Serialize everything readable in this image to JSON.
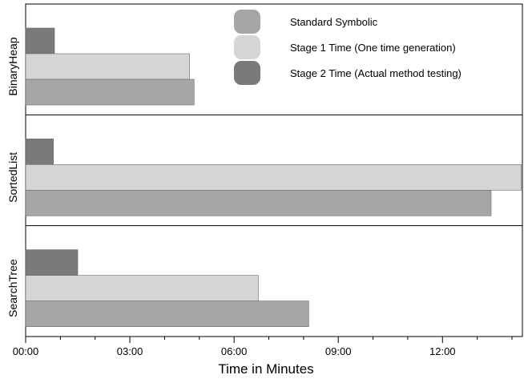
{
  "chart_data": {
    "type": "bar",
    "orientation": "horizontal",
    "title": "",
    "xlabel": "Time in Minutes",
    "ylabel": "",
    "xlim": [
      0,
      14.3
    ],
    "x_ticks": [
      0,
      3,
      6,
      9,
      12
    ],
    "x_tick_labels": [
      "00:00",
      "03:00",
      "06:00",
      "09:00",
      "12:00"
    ],
    "grid": false,
    "legend_position": "top-right",
    "categories": [
      "BinaryHeap",
      "SortedList",
      "SearchTree"
    ],
    "series": [
      {
        "name": "Stage 2 Time (Actual method testing)",
        "color": "#7a7a7a",
        "values": [
          0.83,
          0.8,
          1.5
        ]
      },
      {
        "name": "Stage 1 Time (One time generation)",
        "color": "#d5d5d5",
        "values": [
          4.72,
          14.27,
          6.7
        ]
      },
      {
        "name": "Standard Symbolic",
        "color": "#a6a6a6",
        "values": [
          4.85,
          13.4,
          8.15
        ]
      }
    ],
    "legend_order": [
      "Standard Symbolic",
      "Stage 1 Time (One time generation)",
      "Stage 2 Time (Actual method testing)"
    ]
  }
}
